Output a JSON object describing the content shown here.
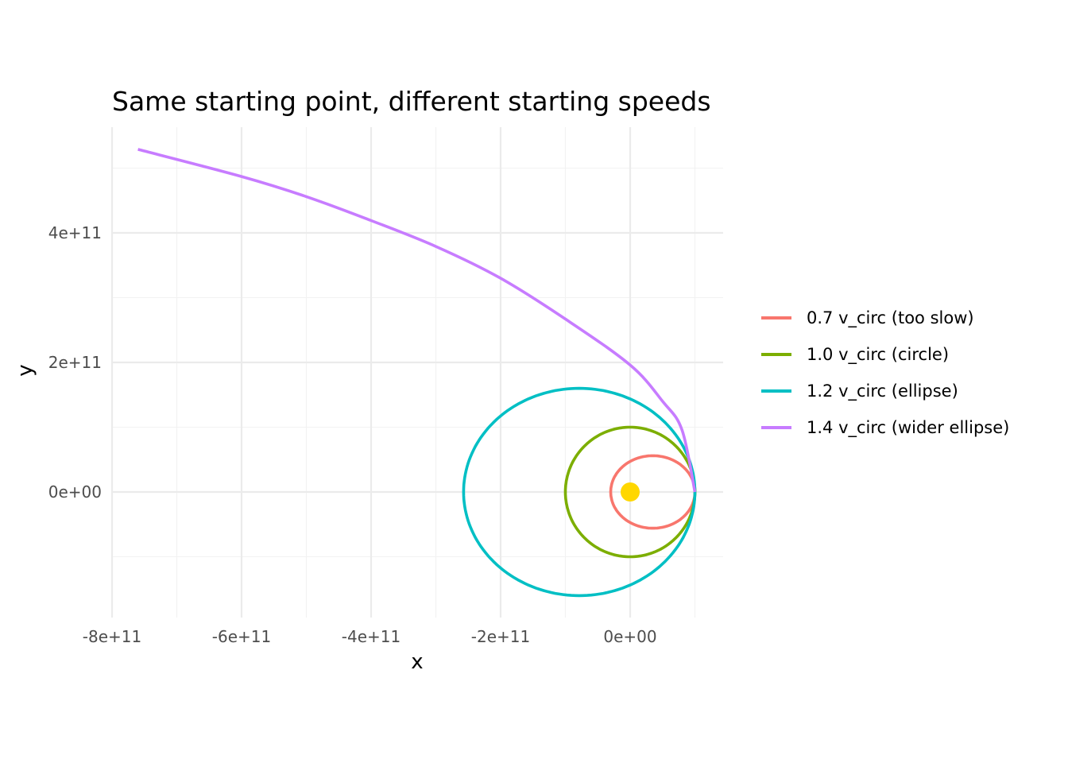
{
  "chart_data": {
    "type": "line",
    "title": "Same starting point, different starting speeds",
    "xlabel": "x",
    "ylabel": "y",
    "xlim": [
      -800000000000.0,
      140000000000.0
    ],
    "ylim": [
      -190000000000.0,
      560000000000.0
    ],
    "x_ticks": [
      -800000000000.0,
      -600000000000.0,
      -400000000000.0,
      -200000000000.0,
      0
    ],
    "x_tick_labels": [
      "-8e+11",
      "-6e+11",
      "-4e+11",
      "-2e+11",
      "0e+00"
    ],
    "y_ticks": [
      0,
      200000000000.0,
      400000000000.0
    ],
    "y_tick_labels": [
      "0e+00",
      "2e+11",
      "4e+11"
    ],
    "grid": true,
    "legend_position": "right",
    "start_point": [
      100000000000.0,
      0
    ],
    "central_body": {
      "x": 0,
      "y": 0,
      "color": "#FFD700"
    },
    "series": [
      {
        "name": "0.7  v_circ  (too slow)",
        "color": "#F8766D",
        "speed_factor": 0.7,
        "kind": "ellipse",
        "center": [
          35000000000.0,
          0
        ],
        "semi_axes": [
          65000000000.0,
          56000000000.0
        ]
      },
      {
        "name": "1.0  v_circ  (circle)",
        "color": "#7CAE00",
        "speed_factor": 1.0,
        "kind": "ellipse",
        "center": [
          0,
          0
        ],
        "semi_axes": [
          100000000000.0,
          100000000000.0
        ]
      },
      {
        "name": "1.2  v_circ  (ellipse)",
        "color": "#00BFC4",
        "speed_factor": 1.2,
        "kind": "ellipse",
        "center": [
          -78600000000.0,
          0
        ],
        "semi_axes": [
          178600000000.0,
          160000000000.0
        ]
      },
      {
        "name": "1.4  v_circ  (wider ellipse)",
        "color": "#C77CFF",
        "speed_factor": 1.4,
        "kind": "arc",
        "x": [
          100000000000.0,
          80000000000.0,
          50000000000.0,
          0,
          -100000000000.0,
          -200000000000.0,
          -300000000000.0,
          -400000000000.0,
          -500000000000.0,
          -600000000000.0,
          -760000000000.0
        ],
        "y": [
          0,
          96000000000.0,
          140000000000.0,
          196000000000.0,
          267000000000.0,
          330000000000.0,
          379000000000.0,
          419000000000.0,
          456000000000.0,
          487000000000.0,
          529000000000.0
        ]
      }
    ]
  }
}
